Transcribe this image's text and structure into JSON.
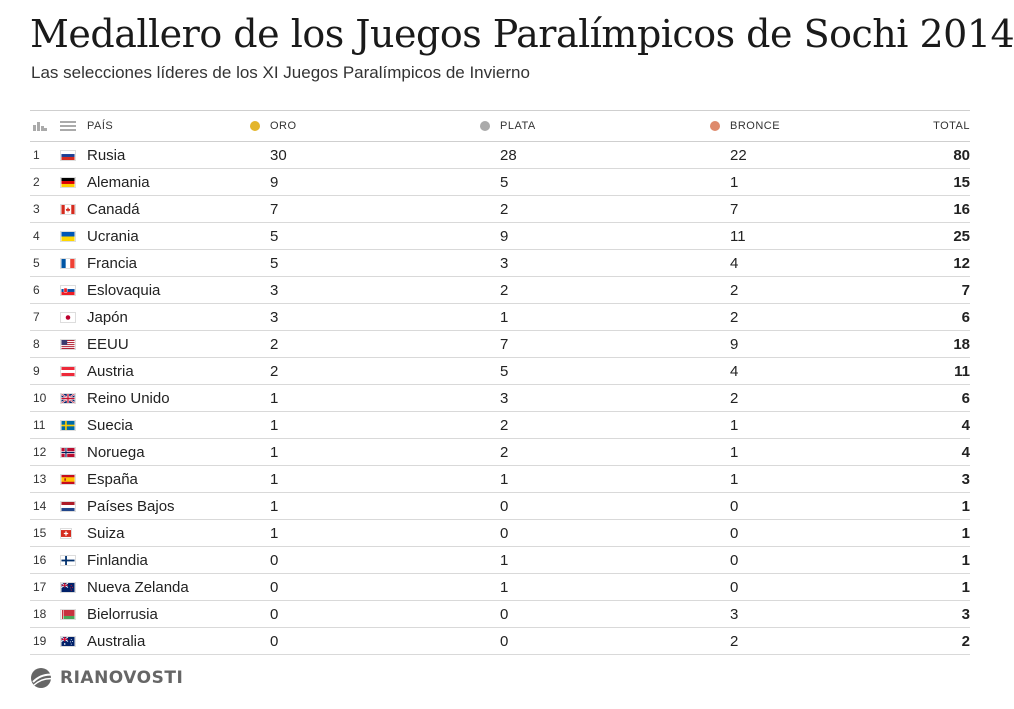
{
  "title": "Medallero de los Juegos Paralímpicos de Sochi 2014",
  "subtitle": "Las selecciones líderes de los XI Juegos Paralímpicos de Invierno",
  "header": {
    "country": "PAÍS",
    "gold": "ORO",
    "silver": "PLATA",
    "bronze": "BRONCE",
    "total": "TOTAL",
    "gold_color": "#e3b52b",
    "silver_color": "#aaaaaa",
    "bronze_color": "#de8a6c"
  },
  "rows": [
    {
      "rank": "1",
      "flag": "russia-flag-icon",
      "country": "Rusia",
      "gold": "30",
      "silver": "28",
      "bronze": "22",
      "total": "80"
    },
    {
      "rank": "2",
      "flag": "germany-flag-icon",
      "country": "Alemania",
      "gold": "9",
      "silver": "5",
      "bronze": "1",
      "total": "15"
    },
    {
      "rank": "3",
      "flag": "canada-flag-icon",
      "country": "Canadá",
      "gold": "7",
      "silver": "2",
      "bronze": "7",
      "total": "16"
    },
    {
      "rank": "4",
      "flag": "ukraine-flag-icon",
      "country": "Ucrania",
      "gold": "5",
      "silver": "9",
      "bronze": "11",
      "total": "25"
    },
    {
      "rank": "5",
      "flag": "france-flag-icon",
      "country": "Francia",
      "gold": "5",
      "silver": "3",
      "bronze": "4",
      "total": "12"
    },
    {
      "rank": "6",
      "flag": "slovakia-flag-icon",
      "country": "Eslovaquia",
      "gold": "3",
      "silver": "2",
      "bronze": "2",
      "total": "7"
    },
    {
      "rank": "7",
      "flag": "japan-flag-icon",
      "country": "Japón",
      "gold": "3",
      "silver": "1",
      "bronze": "2",
      "total": "6"
    },
    {
      "rank": "8",
      "flag": "usa-flag-icon",
      "country": "EEUU",
      "gold": "2",
      "silver": "7",
      "bronze": "9",
      "total": "18"
    },
    {
      "rank": "9",
      "flag": "austria-flag-icon",
      "country": "Austria",
      "gold": "2",
      "silver": "5",
      "bronze": "4",
      "total": "11"
    },
    {
      "rank": "10",
      "flag": "uk-flag-icon",
      "country": "Reino Unido",
      "gold": "1",
      "silver": "3",
      "bronze": "2",
      "total": "6"
    },
    {
      "rank": "11",
      "flag": "sweden-flag-icon",
      "country": "Suecia",
      "gold": "1",
      "silver": "2",
      "bronze": "1",
      "total": "4"
    },
    {
      "rank": "12",
      "flag": "norway-flag-icon",
      "country": "Noruega",
      "gold": "1",
      "silver": "2",
      "bronze": "1",
      "total": "4"
    },
    {
      "rank": "13",
      "flag": "spain-flag-icon",
      "country": "España",
      "gold": "1",
      "silver": "1",
      "bronze": "1",
      "total": "3"
    },
    {
      "rank": "14",
      "flag": "netherlands-flag-icon",
      "country": "Países Bajos",
      "gold": "1",
      "silver": "0",
      "bronze": "0",
      "total": "1"
    },
    {
      "rank": "15",
      "flag": "switzerland-flag-icon",
      "country": "Suiza",
      "gold": "1",
      "silver": "0",
      "bronze": "0",
      "total": "1"
    },
    {
      "rank": "16",
      "flag": "finland-flag-icon",
      "country": "Finlandia",
      "gold": "0",
      "silver": "1",
      "bronze": "0",
      "total": "1"
    },
    {
      "rank": "17",
      "flag": "new-zealand-flag-icon",
      "country": "Nueva Zelanda",
      "gold": "0",
      "silver": "1",
      "bronze": "0",
      "total": "1"
    },
    {
      "rank": "18",
      "flag": "belarus-flag-icon",
      "country": "Bielorrusia",
      "gold": "0",
      "silver": "0",
      "bronze": "3",
      "total": "3"
    },
    {
      "rank": "19",
      "flag": "australia-flag-icon",
      "country": "Australia",
      "gold": "0",
      "silver": "0",
      "bronze": "2",
      "total": "2"
    }
  ],
  "logo": "RIANOVOSTI"
}
